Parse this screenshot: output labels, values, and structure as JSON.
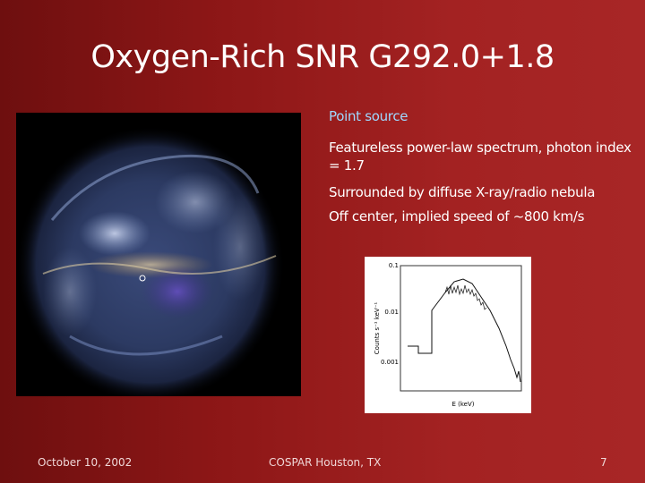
{
  "header": {
    "title": "Oxygen-Rich SNR G292.0+1.8"
  },
  "bullets": [
    "Point source",
    "Featureless power-law spectrum, photon index = 1.7",
    "Surrounded by diffuse X-ray/radio nebula",
    "Off center, implied speed of ~800 km/s"
  ],
  "spectrum": {
    "yticks": [
      "0.1",
      "0.01",
      "0.001"
    ],
    "xlabel": "E (keV)",
    "ylabel": "Counts s⁻¹ keV⁻¹"
  },
  "footer": {
    "date": "October 10, 2002",
    "venue": "COSPAR Houston, TX",
    "page": "7"
  }
}
